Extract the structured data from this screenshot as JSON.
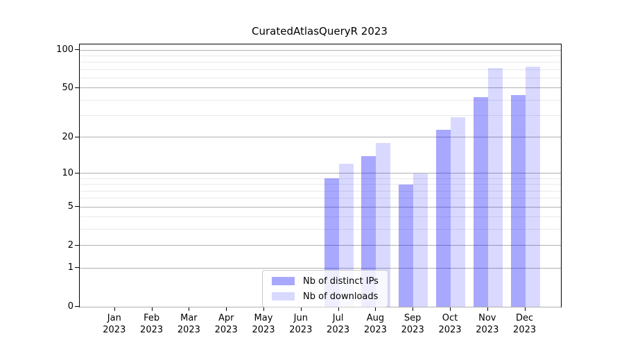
{
  "chart_data": {
    "type": "bar",
    "title": "CuratedAtlasQueryR 2023",
    "categories": [
      "Jan 2023",
      "Feb 2023",
      "Mar 2023",
      "Apr 2023",
      "May 2023",
      "Jun 2023",
      "Jul 2023",
      "Aug 2023",
      "Sep 2023",
      "Oct 2023",
      "Nov 2023",
      "Dec 2023"
    ],
    "series": [
      {
        "name": "Nb of distinct IPs",
        "color": "rgba(0,0,255,0.34)",
        "values": [
          0,
          0,
          0,
          0,
          0,
          0,
          9,
          14,
          8,
          23,
          42,
          44
        ]
      },
      {
        "name": "Nb of downloads",
        "color": "rgba(0,0,255,0.15)",
        "values": [
          0,
          0,
          0,
          0,
          0,
          0,
          12,
          18,
          10,
          29,
          72,
          74
        ]
      }
    ],
    "yscale": "log1p",
    "ylim": [
      0,
      110
    ],
    "y_major_ticks": [
      0,
      1,
      2,
      5,
      10,
      20,
      50,
      100
    ],
    "y_minor_ticks": [
      3,
      4,
      6,
      7,
      8,
      9,
      30,
      40,
      60,
      70,
      80,
      90
    ],
    "grid": "horizontal",
    "legend_position": "lower-center",
    "colors": {
      "major_grid": "#b0b0b0",
      "minor_grid": "#e9e9e9",
      "spine": "#000000",
      "background": "#ffffff"
    }
  }
}
